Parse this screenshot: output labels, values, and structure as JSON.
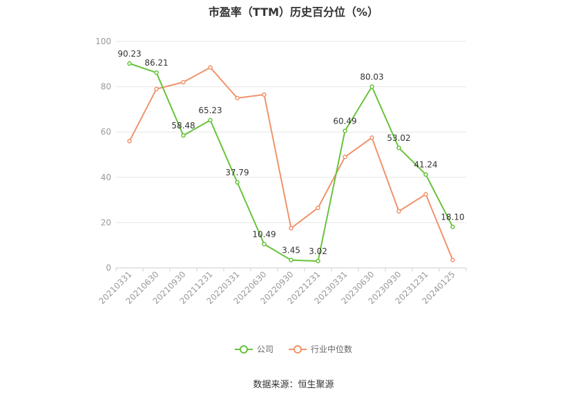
{
  "chart_data": {
    "type": "line",
    "title": "市盈率（TTM）历史百分位（%）",
    "categories": [
      "20210331",
      "20210630",
      "20210930",
      "20211231",
      "20220331",
      "20220630",
      "20220930",
      "20221231",
      "20230331",
      "20230630",
      "20230930",
      "20231231",
      "20240125"
    ],
    "ylim": [
      0,
      100
    ],
    "yticks": [
      0,
      20,
      40,
      60,
      80,
      100
    ],
    "grid": true,
    "legend_position": "bottom",
    "series": [
      {
        "name": "公司",
        "color": "#67c23a",
        "show_labels": true,
        "labels": [
          "90.23",
          "86.21",
          "58.48",
          "65.23",
          "37.79",
          "10.49",
          "3.45",
          "3.02",
          "60.49",
          "80.03",
          "53.02",
          "41.24",
          "18.10"
        ],
        "values": [
          90.23,
          86.21,
          58.48,
          65.23,
          37.79,
          10.49,
          3.45,
          3.02,
          60.49,
          80.03,
          53.02,
          41.24,
          18.1
        ]
      },
      {
        "name": "行业中位数",
        "color": "#f0926a",
        "show_labels": false,
        "values": [
          56,
          79,
          82,
          88.5,
          75,
          76.5,
          17.5,
          26.5,
          49,
          57.5,
          25,
          32.5,
          3.5
        ]
      }
    ],
    "source": "数据来源：恒生聚源"
  }
}
